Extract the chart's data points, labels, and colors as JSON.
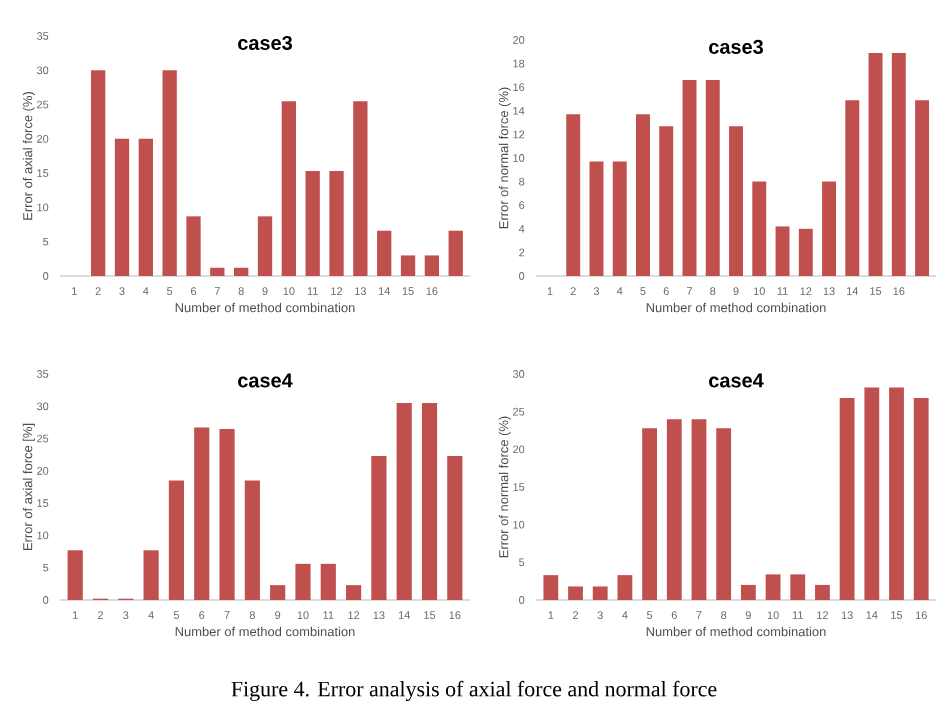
{
  "chart_data": [
    {
      "type": "bar",
      "title": "case3",
      "xlabel": "Number of method combination",
      "ylabel": "Error of axial force (%)",
      "categories": [
        "1",
        "2",
        "3",
        "4",
        "5",
        "6",
        "7",
        "8",
        "9",
        "10",
        "11",
        "12",
        "13",
        "14",
        "15",
        "16",
        null
      ],
      "values": [
        0,
        30,
        20,
        20,
        30,
        8.7,
        1.2,
        1.2,
        8.7,
        25.5,
        15.3,
        15.3,
        25.5,
        6.6,
        3,
        3,
        6.6
      ],
      "color": "#c0504d",
      "ylim": [
        0,
        35
      ],
      "yticks": [
        0,
        5,
        10,
        15,
        20,
        25,
        30,
        35
      ]
    },
    {
      "type": "bar",
      "title": "case3",
      "xlabel": "Number of method combination",
      "ylabel": "Error of normal force (%)",
      "categories": [
        "1",
        "2",
        "3",
        "4",
        "5",
        "6",
        "7",
        "8",
        "9",
        "10",
        "11",
        "12",
        "13",
        "14",
        "15",
        "16",
        null
      ],
      "values": [
        0,
        13.7,
        9.7,
        9.7,
        13.7,
        12.7,
        16.6,
        16.6,
        12.7,
        8,
        4.2,
        4,
        8,
        14.9,
        18.9,
        18.9,
        14.9
      ],
      "color": "#c0504d",
      "ylim": [
        0,
        20
      ],
      "yticks": [
        0,
        2,
        4,
        6,
        8,
        10,
        12,
        14,
        16,
        18,
        20
      ]
    },
    {
      "type": "bar",
      "title": "case4",
      "xlabel": "Number of method combination",
      "ylabel": "Error of axial force [%]",
      "categories": [
        "1",
        "2",
        "3",
        "4",
        "5",
        "6",
        "7",
        "8",
        "9",
        "10",
        "11",
        "12",
        "13",
        "14",
        "15",
        "16"
      ],
      "values": [
        7.7,
        0.2,
        0.2,
        7.7,
        18.5,
        26.7,
        26.5,
        18.5,
        2.3,
        5.6,
        5.6,
        2.3,
        22.3,
        30.5,
        30.5,
        22.3
      ],
      "color": "#c0504d",
      "ylim": [
        0,
        35
      ],
      "yticks": [
        0,
        5,
        10,
        15,
        20,
        25,
        30,
        35
      ]
    },
    {
      "type": "bar",
      "title": "case4",
      "xlabel": "Number of method combination",
      "ylabel": "Error of normal force (%)",
      "categories": [
        "1",
        "2",
        "3",
        "4",
        "5",
        "6",
        "7",
        "8",
        "9",
        "10",
        "11",
        "12",
        "13",
        "14",
        "15",
        "16"
      ],
      "values": [
        3.3,
        1.8,
        1.8,
        3.3,
        22.8,
        24,
        24,
        22.8,
        2,
        3.4,
        3.4,
        2,
        26.8,
        28.2,
        28.2,
        26.8
      ],
      "color": "#c0504d",
      "ylim": [
        0,
        30
      ],
      "yticks": [
        0,
        5,
        10,
        15,
        20,
        25,
        30
      ],
      "annotations": [
        "Figure 4.   Error analysis of axial force and normal force"
      ]
    }
  ]
}
